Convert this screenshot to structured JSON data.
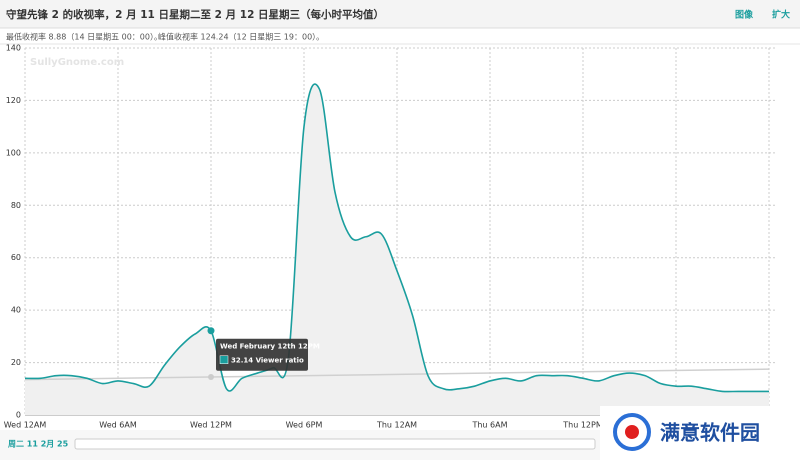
{
  "header": {
    "title": "守望先锋 2 的收视率，2 月 11 日星期二至 2 月 12 日星期三（每小时平均值）",
    "links": [
      "图像",
      "扩大"
    ],
    "stats": [
      "最低收视率 8.88（14 日星期五 00：00）。",
      "峰值收视率 124.24（12 日星期三 19：00）。"
    ]
  },
  "chart_data": {
    "type": "area-line",
    "watermark": "SullyGnome.com",
    "categories": [
      "Wed 12AM",
      null,
      null,
      null,
      null,
      null,
      "Wed 6AM",
      null,
      null,
      null,
      null,
      null,
      "Wed 12PM",
      null,
      null,
      null,
      null,
      null,
      "Wed 6PM",
      null,
      null,
      null,
      null,
      null,
      "Thu 12AM",
      null,
      null,
      null,
      null,
      null,
      "Thu 6AM",
      null,
      null,
      null,
      null,
      null,
      "Thu 12PM",
      null,
      null,
      null,
      null,
      null,
      null,
      null,
      null,
      null,
      null,
      null,
      null
    ],
    "series": [
      {
        "color": "#1a9e9e",
        "values": [
          14,
          14,
          15,
          15,
          14,
          12,
          13,
          12,
          11,
          19,
          26,
          31,
          32.14,
          10,
          14,
          16,
          18,
          22,
          110,
          124.24,
          85,
          68,
          68,
          69,
          55,
          38,
          15,
          10,
          10,
          11,
          13,
          14,
          13,
          15,
          15,
          15,
          14,
          13,
          15,
          16,
          15,
          12,
          11,
          11,
          10,
          9,
          9,
          9,
          9
        ]
      }
    ],
    "trend": {
      "color": "#d0d0d0",
      "values": [
        13.5,
        17.5
      ]
    },
    "ylim": [
      0,
      140
    ],
    "yticks": [
      0,
      20,
      40,
      60,
      80,
      100,
      120,
      140
    ],
    "grid": true
  },
  "tooltip": {
    "title": "Wed February 12th 12PM",
    "text": "32.14 Viewer ratio",
    "index": 12
  },
  "navigator": {
    "label": "周二 11 2月 25"
  },
  "logo": {
    "text": "满意软件园"
  }
}
